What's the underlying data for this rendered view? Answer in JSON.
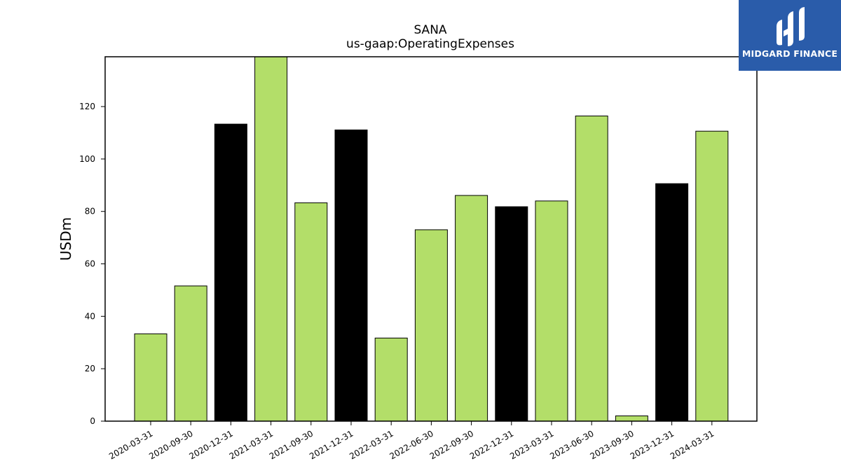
{
  "chart_data": {
    "type": "bar",
    "title": "SANA",
    "subtitle": "us-gaap:OperatingExpenses",
    "xlabel": "",
    "ylabel": "USDm",
    "ylim": [
      0,
      139
    ],
    "yticks": [
      0,
      20,
      40,
      60,
      80,
      100,
      120
    ],
    "categories": [
      "2020-03-31",
      "2020-09-30",
      "2020-12-31",
      "2021-03-31",
      "2021-09-30",
      "2021-12-31",
      "2022-03-31",
      "2022-06-30",
      "2022-09-30",
      "2022-12-31",
      "2023-03-31",
      "2023-06-30",
      "2023-09-30",
      "2023-12-31",
      "2024-03-31"
    ],
    "values": [
      33.3,
      51.6,
      113.3,
      139.3,
      83.3,
      111.1,
      31.7,
      73.0,
      86.1,
      81.8,
      84.0,
      116.4,
      2.0,
      90.6,
      110.6
    ],
    "highlight_categories": [
      "2020-12-31",
      "2021-12-31",
      "2022-12-31",
      "2023-12-31"
    ],
    "colors": {
      "default_bar": "#b3de69",
      "highlight_bar": "#000000",
      "bar_edge": "#000000"
    },
    "grid": false,
    "legend": "none"
  },
  "logo": {
    "text": "MIDGARD FINANCE",
    "color": "#2a5caa"
  }
}
